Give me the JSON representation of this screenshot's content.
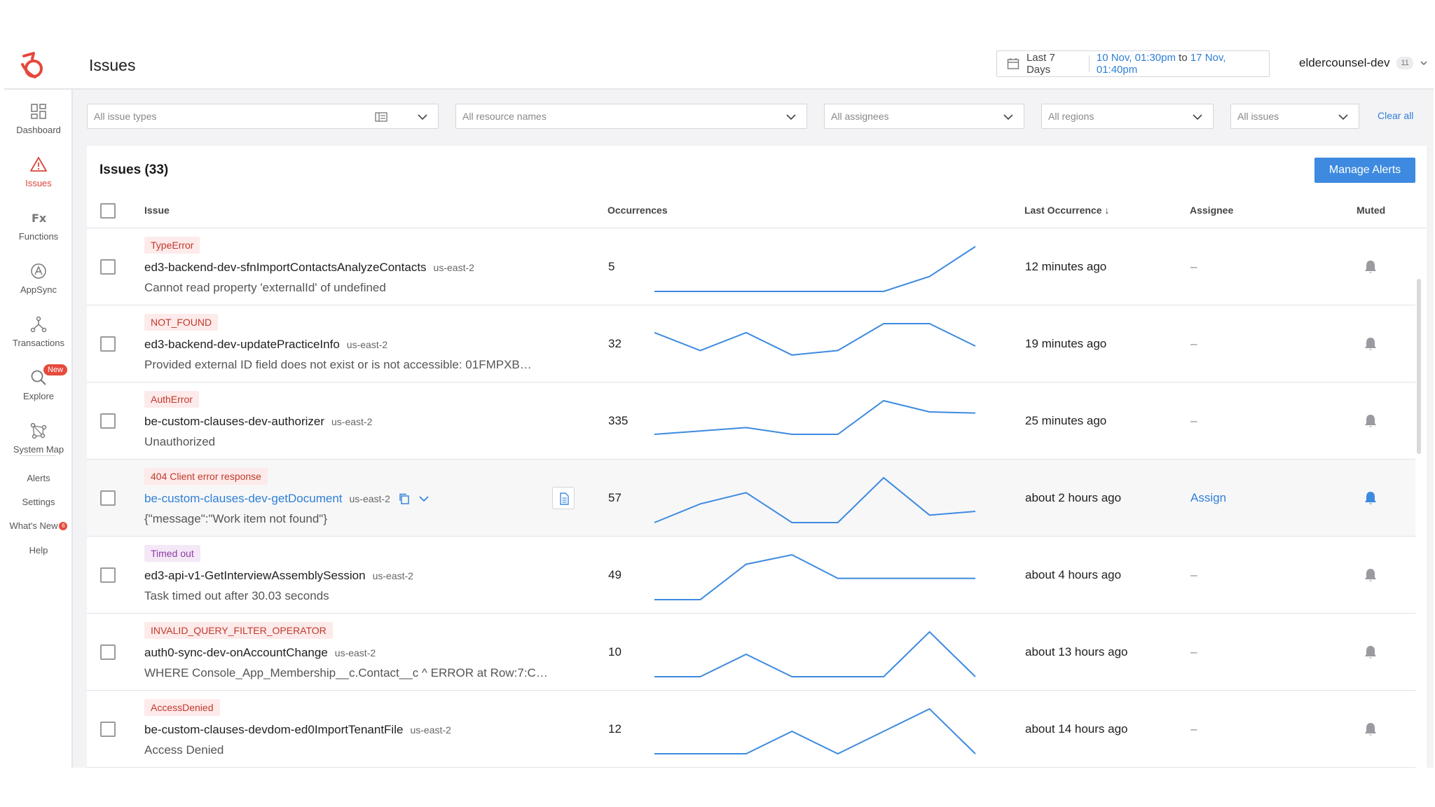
{
  "header": {
    "title": "Issues",
    "date_preset": "Last 7 Days",
    "range_start": "10 Nov, 01:30pm",
    "range_to": "to",
    "range_end": "17 Nov, 01:40pm",
    "account": "eldercounsel-dev",
    "account_count": "11"
  },
  "sidebar": {
    "items": [
      {
        "label": "Dashboard",
        "icon": "dashboard-icon"
      },
      {
        "label": "Issues",
        "icon": "warning-icon"
      },
      {
        "label": "Functions",
        "icon": "fx-icon"
      },
      {
        "label": "AppSync",
        "icon": "appsync-icon"
      },
      {
        "label": "Transactions",
        "icon": "transactions-icon"
      },
      {
        "label": "Explore",
        "icon": "search-icon",
        "badge": "New"
      },
      {
        "label": "System Map",
        "icon": "system-map-icon"
      }
    ],
    "links": [
      {
        "label": "Alerts"
      },
      {
        "label": "Settings"
      },
      {
        "label": "What's New",
        "badge": "6"
      },
      {
        "label": "Help"
      }
    ]
  },
  "filters": {
    "issue_types": "All issue types",
    "resource_names": "All resource names",
    "assignees": "All assignees",
    "regions": "All regions",
    "issues": "All issues",
    "clear_all": "Clear all"
  },
  "panel": {
    "title": "Issues (33)",
    "manage_alerts": "Manage Alerts",
    "columns": {
      "issue": "Issue",
      "occurrences": "Occurrences",
      "last_occurrence": "Last Occurrence ↓",
      "assignee": "Assignee",
      "muted": "Muted"
    }
  },
  "colors": {
    "accent": "#3d8ae0",
    "link": "#2f7fd6",
    "error_tag_bg": "#fdeaea",
    "error_tag_text": "#c0392b",
    "timeout_tag_bg": "#f4e8f7",
    "timeout_tag_text": "#8e3aa3",
    "sparkline": "#3d8ae0"
  },
  "rows": [
    {
      "tag": "TypeError",
      "tag_style": "red",
      "name": "ed3-backend-dev-sfnImportContactsAnalyzeContacts",
      "region": "us-east-2",
      "message": "Cannot read property 'externalId' of undefined",
      "occurrences": "5",
      "trend": [
        0,
        0,
        0,
        0,
        0,
        0,
        1,
        3
      ],
      "last": "12 minutes ago",
      "assignee": "–",
      "muted": false
    },
    {
      "tag": "NOT_FOUND",
      "tag_style": "red",
      "name": "ed3-backend-dev-updatePracticeInfo",
      "region": "us-east-2",
      "message": "Provided external ID field does not exist or is not accessible: 01FMPXB…",
      "occurrences": "32",
      "trend": [
        4,
        2,
        4,
        1.5,
        2,
        5,
        5,
        2.5
      ],
      "last": "19 minutes ago",
      "assignee": "–",
      "muted": false
    },
    {
      "tag": "AuthError",
      "tag_style": "red",
      "name": "be-custom-clauses-dev-authorizer",
      "region": "us-east-2",
      "message": "Unauthorized",
      "occurrences": "335",
      "trend": [
        1,
        1.3,
        1.6,
        1,
        1,
        4,
        3,
        2.9
      ],
      "last": "25 minutes ago",
      "assignee": "–",
      "muted": false
    },
    {
      "tag": "404 Client error response",
      "tag_style": "red",
      "name": "be-custom-clauses-dev-getDocument",
      "region": "us-east-2",
      "message": "{\"message\":\"Work item not found\"}",
      "occurrences": "57",
      "trend": [
        0,
        1.5,
        2.4,
        0,
        0,
        3.6,
        0.6,
        0.9
      ],
      "last": "about 2 hours ago",
      "assignee": "Assign",
      "muted": true,
      "highlighted": true
    },
    {
      "tag": "Timed out",
      "tag_style": "purple",
      "name": "ed3-api-v1-GetInterviewAssemblySession",
      "region": "us-east-2",
      "message": "Task timed out after 30.03 seconds",
      "occurrences": "49",
      "trend": [
        0,
        0,
        1.5,
        1.9,
        0.9,
        0.9,
        0.9,
        0.9
      ],
      "last": "about 4 hours ago",
      "assignee": "–",
      "muted": false
    },
    {
      "tag": "INVALID_QUERY_FILTER_OPERATOR",
      "tag_style": "red",
      "name": "auth0-sync-dev-onAccountChange",
      "region": "us-east-2",
      "message": "WHERE Console_App_Membership__c.Contact__c ^ ERROR at Row:7:C…",
      "occurrences": "10",
      "trend": [
        0,
        0,
        1,
        0,
        0,
        0,
        2,
        0
      ],
      "last": "about 13 hours ago",
      "assignee": "–",
      "muted": false
    },
    {
      "tag": "AccessDenied",
      "tag_style": "red",
      "name": "be-custom-clauses-devdom-ed0ImportTenantFile",
      "region": "us-east-2",
      "message": "Access Denied",
      "occurrences": "12",
      "trend": [
        0,
        0,
        0,
        1,
        0,
        1,
        2,
        0
      ],
      "last": "about 14 hours ago",
      "assignee": "–",
      "muted": false
    }
  ]
}
